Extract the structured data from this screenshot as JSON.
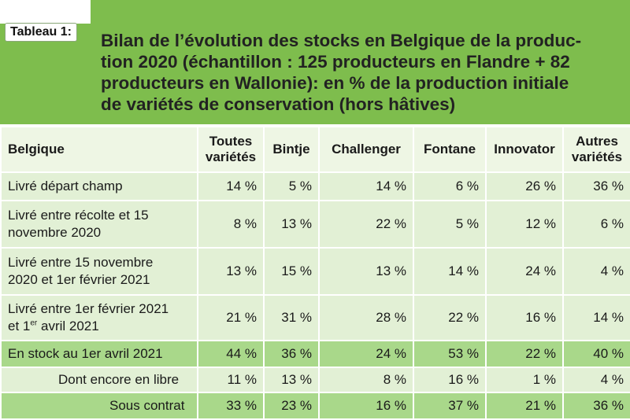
{
  "tag": "Tableau 1:",
  "title_lines": [
    "Bilan de l’évolution des stocks en Belgique de la produc-",
    "tion 2020 (échantillon : 125 producteurs en Flandre + 82",
    "producteurs en Wallonie): en % de la production initiale",
    "de variétés de conservation (hors hâtives)"
  ],
  "columns": {
    "c0": "Belgique",
    "c1a": "Toutes",
    "c1b": "variétés",
    "c2": "Bintje",
    "c3": "Challenger",
    "c4": "Fontane",
    "c5": "Innovator",
    "c6a": "Autres",
    "c6b": "variétés"
  },
  "rows": [
    {
      "label_a": "Livré départ champ",
      "label_b": "",
      "values": [
        "14 %",
        "5 %",
        "14 %",
        "6 %",
        "26 %",
        "36 %"
      ]
    },
    {
      "label_a": "Livré entre récolte et 15",
      "label_b": "novembre 2020",
      "values": [
        "8 %",
        "13 %",
        "22 %",
        "5 %",
        "12 %",
        "6 %"
      ]
    },
    {
      "label_a": "Livré entre 15 novembre",
      "label_b": "2020 et 1er février 2021",
      "values": [
        "13 %",
        "15 %",
        "13 %",
        "14 %",
        "24 %",
        "4 %"
      ]
    },
    {
      "label_a": "Livré entre 1er février 2021",
      "label_b_pre": "et 1",
      "label_b_sup": "er",
      "label_b_post": " avril 2021",
      "values": [
        "21 %",
        "31 %",
        "28 %",
        "22 %",
        "16 %",
        "14 %"
      ]
    },
    {
      "label_a": "En stock au 1er avril 2021",
      "values": [
        "44 %",
        "36 %",
        "24 %",
        "53 %",
        "22 %",
        "40 %"
      ]
    },
    {
      "label_a": "Dont encore en libre",
      "values": [
        "11 %",
        "13 %",
        "8 %",
        "16 %",
        "1 %",
        "4 %"
      ]
    },
    {
      "label_a": "Sous contrat",
      "values": [
        "33 %",
        "23 %",
        "16 %",
        "37 %",
        "21 %",
        "36 %"
      ]
    }
  ]
}
